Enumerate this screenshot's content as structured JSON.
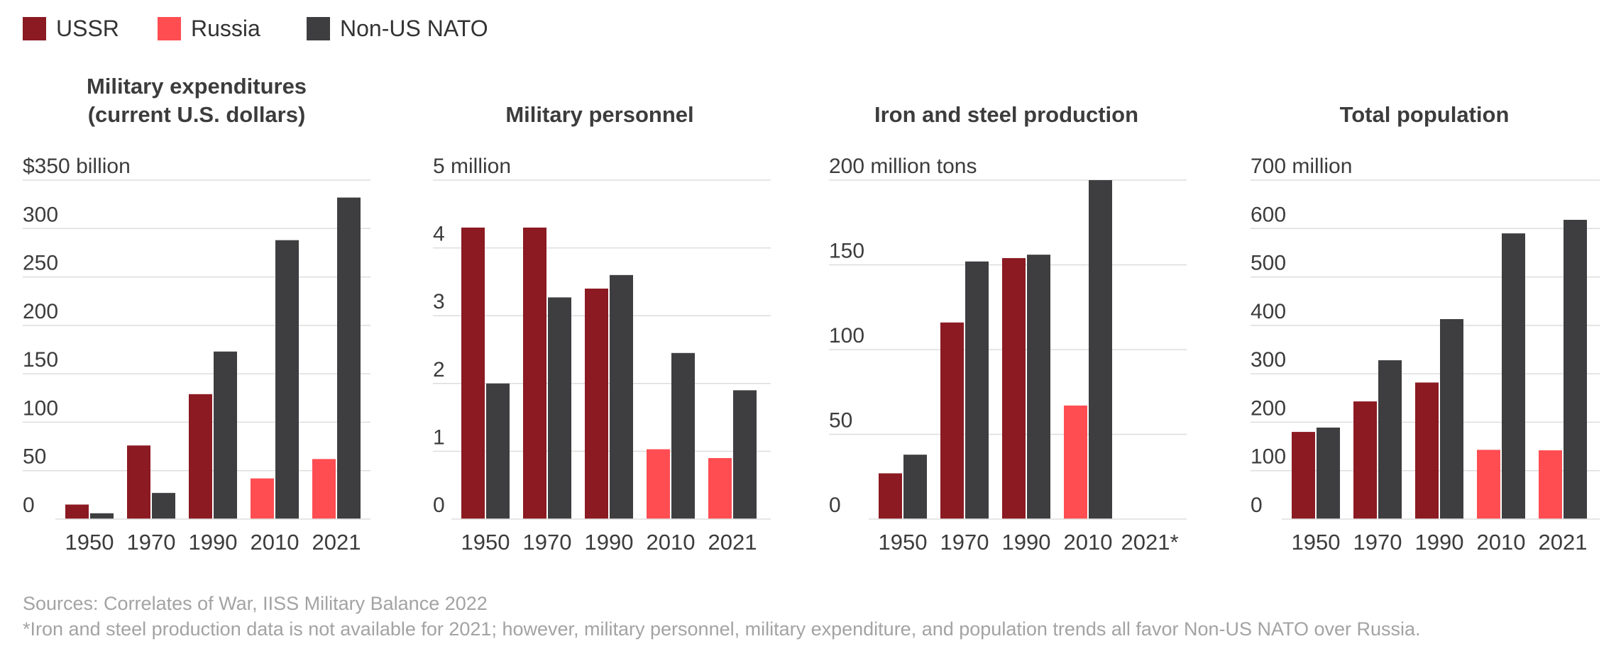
{
  "legend": [
    {
      "label": "USSR",
      "color": "#8b1a22"
    },
    {
      "label": "Russia",
      "color": "#ff4d52"
    },
    {
      "label": "Non-US NATO",
      "color": "#3e3e40"
    }
  ],
  "colors": {
    "ussr": "#8b1a22",
    "russia": "#ff4d52",
    "non_us_nato": "#3e3e40",
    "gridline": "#dddddd",
    "axis_text": "#3c3c3c",
    "footer_text": "#a3a3a3"
  },
  "chart_data": [
    {
      "type": "bar",
      "title": "Military expenditures\n(current U.S. dollars)",
      "categories": [
        "1950",
        "1970",
        "1990",
        "2010",
        "2021"
      ],
      "ylim": [
        0,
        350
      ],
      "yticks": [
        "0",
        "50",
        "100",
        "150",
        "200",
        "250",
        "300",
        "$350 billion"
      ],
      "grid": true,
      "series": [
        {
          "name": "USSR / Russia",
          "colors": [
            "#8b1a22",
            "#8b1a22",
            "#8b1a22",
            "#ff4d52",
            "#ff4d52"
          ],
          "values": [
            15,
            76,
            129,
            42,
            62
          ]
        },
        {
          "name": "Non-US NATO",
          "colors": [
            "#3e3e40",
            "#3e3e40",
            "#3e3e40",
            "#3e3e40",
            "#3e3e40"
          ],
          "values": [
            6,
            27,
            173,
            288,
            332
          ]
        }
      ]
    },
    {
      "type": "bar",
      "title": "Military personnel",
      "categories": [
        "1950",
        "1970",
        "1990",
        "2010",
        "2021"
      ],
      "ylim": [
        0,
        5
      ],
      "yticks": [
        "0",
        "1",
        "2",
        "3",
        "4",
        "5 million"
      ],
      "grid": true,
      "series": [
        {
          "name": "USSR / Russia",
          "colors": [
            "#8b1a22",
            "#8b1a22",
            "#8b1a22",
            "#ff4d52",
            "#ff4d52"
          ],
          "values": [
            4.3,
            4.3,
            3.4,
            1.03,
            0.9
          ]
        },
        {
          "name": "Non-US NATO",
          "colors": [
            "#3e3e40",
            "#3e3e40",
            "#3e3e40",
            "#3e3e40",
            "#3e3e40"
          ],
          "values": [
            2.0,
            3.27,
            3.6,
            2.45,
            1.9
          ]
        }
      ]
    },
    {
      "type": "bar",
      "title": "Iron and steel production",
      "categories": [
        "1950",
        "1970",
        "1990",
        "2010",
        "2021*"
      ],
      "ylim": [
        0,
        200
      ],
      "yticks": [
        "0",
        "50",
        "100",
        "150",
        "200 million tons"
      ],
      "grid": true,
      "series": [
        {
          "name": "USSR / Russia",
          "colors": [
            "#8b1a22",
            "#8b1a22",
            "#8b1a22",
            "#ff4d52",
            "#ff4d52"
          ],
          "values": [
            27,
            116,
            154,
            67,
            null
          ]
        },
        {
          "name": "Non-US NATO",
          "colors": [
            "#3e3e40",
            "#3e3e40",
            "#3e3e40",
            "#3e3e40",
            "#3e3e40"
          ],
          "values": [
            38,
            152,
            156,
            200,
            null
          ]
        }
      ]
    },
    {
      "type": "bar",
      "title": "Total population",
      "categories": [
        "1950",
        "1970",
        "1990",
        "2010",
        "2021"
      ],
      "ylim": [
        0,
        700
      ],
      "yticks": [
        "0",
        "100",
        "200",
        "300",
        "400",
        "500",
        "600",
        "700 million"
      ],
      "grid": true,
      "series": [
        {
          "name": "USSR / Russia",
          "colors": [
            "#8b1a22",
            "#8b1a22",
            "#8b1a22",
            "#ff4d52",
            "#ff4d52"
          ],
          "values": [
            180,
            243,
            282,
            143,
            142
          ]
        },
        {
          "name": "Non-US NATO",
          "colors": [
            "#3e3e40",
            "#3e3e40",
            "#3e3e40",
            "#3e3e40",
            "#3e3e40"
          ],
          "values": [
            189,
            328,
            413,
            590,
            618
          ]
        }
      ]
    }
  ],
  "footer": {
    "sources": "Sources: Correlates of War, IISS Military Balance 2022",
    "note": "*Iron and steel production data is not available for 2021; however, military personnel, military expenditure, and population trends all favor Non-US NATO over Russia."
  }
}
